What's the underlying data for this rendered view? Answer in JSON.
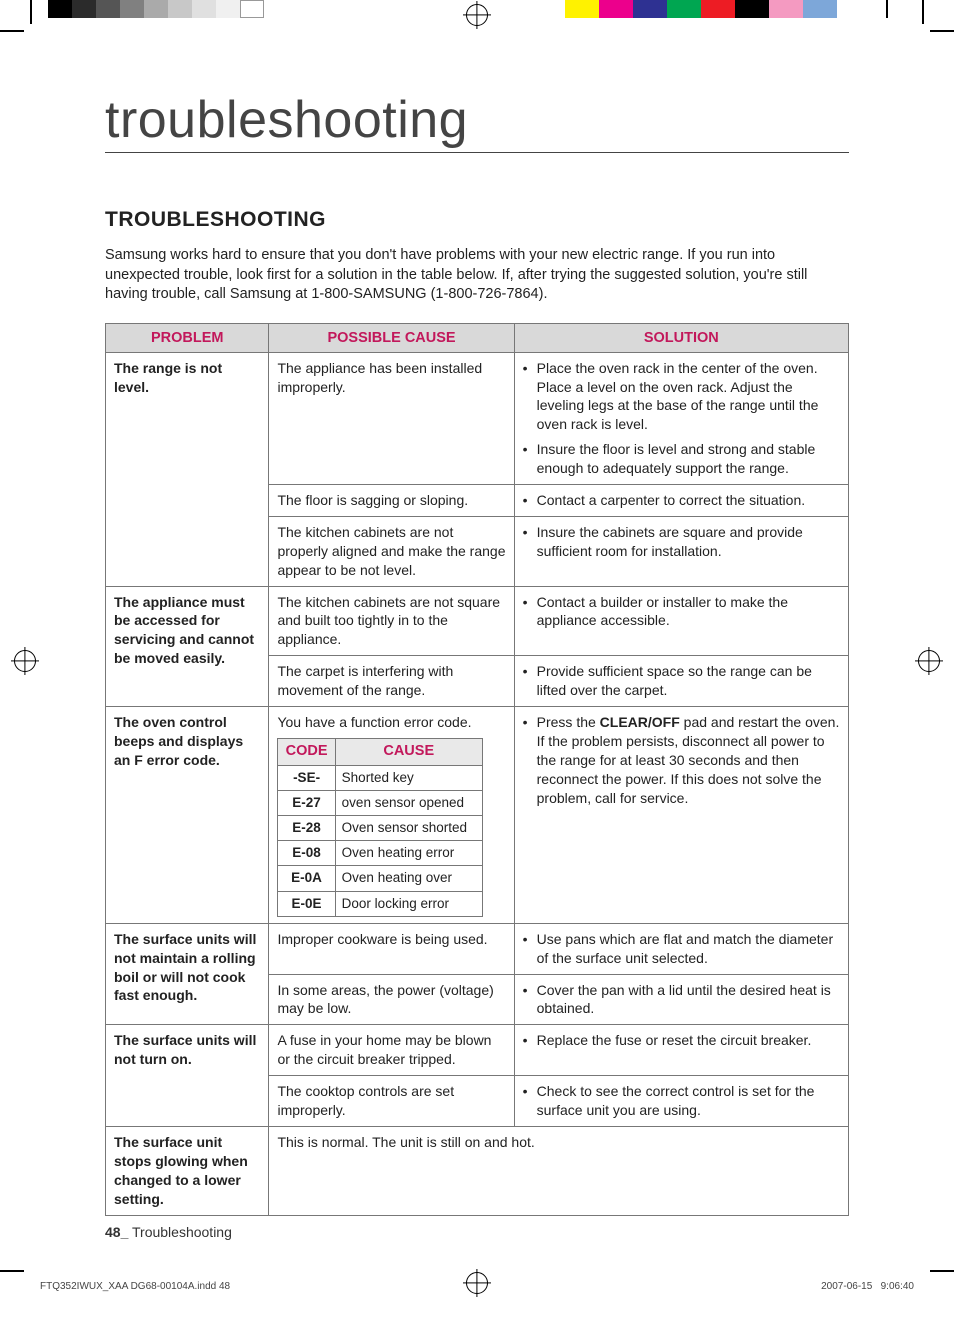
{
  "printer_bars_left": [
    "#000000",
    "#2b2b2b",
    "#555555",
    "#808080",
    "#aaaaaa",
    "#c8c8c8",
    "#e0e0e0",
    "#f0f0f0",
    "#ffffff"
  ],
  "printer_bars_right": [
    "#fff200",
    "#ec008c",
    "#2e3192",
    "#00a651",
    "#ed1c24",
    "#000000",
    "#f49ac1",
    "#7da7d9"
  ],
  "title": "troubleshooting",
  "section_heading": "TROUBLESHOOTING",
  "intro": "Samsung works hard to ensure that you don't have problems with your new electric range. If you run into unexpected trouble, look first for a solution in the table below. If, after trying the suggested solution, you're still having trouble, call Samsung at 1-800-SAMSUNG (1-800-726-7864).",
  "table_headers": {
    "problem": "PROBLEM",
    "cause": "POSSIBLE CAUSE",
    "solution": "SOLUTION"
  },
  "header_text_color": "#c2185b",
  "rows": [
    {
      "problem": "The range is not level.",
      "causes": [
        {
          "text": "The appliance has been installed improperly.",
          "solutions": [
            "Place the oven rack in the center of the oven. Place a level on the oven rack. Adjust the leveling legs at the base of the range until the oven rack is level.",
            "Insure the floor is level and strong and stable enough to adequately support the range."
          ]
        },
        {
          "text": "The floor is sagging or sloping.",
          "solutions": [
            "Contact a carpenter to correct the situation."
          ]
        },
        {
          "text": "The kitchen cabinets are not properly aligned and make the range appear to be not level.",
          "solutions": [
            "Insure the cabinets are square and provide sufficient room for installation."
          ]
        }
      ]
    },
    {
      "problem": "The appliance must be accessed for servicing and cannot be moved easily.",
      "causes": [
        {
          "text": "The kitchen cabinets are not square and built too tightly in to the appliance.",
          "solutions": [
            "Contact a builder or installer to make the appliance accessible."
          ]
        },
        {
          "text": "The carpet is interfering with movement of the range.",
          "solutions": [
            "Provide sufficient space so the range can be lifted over the carpet."
          ]
        }
      ]
    },
    {
      "problem": "The oven control beeps and displays an F error code.",
      "causes": [
        {
          "text": "You have a function error code.",
          "inner_table": {
            "headers": [
              "CODE",
              "CAUSE"
            ],
            "rows": [
              [
                "-SE-",
                "Shorted key"
              ],
              [
                "E-27",
                "oven sensor opened"
              ],
              [
                "E-28",
                "Oven sensor shorted"
              ],
              [
                "E-08",
                "Oven heating error"
              ],
              [
                "E-0A",
                "Oven heating over"
              ],
              [
                "E-0E",
                "Door locking error"
              ]
            ]
          },
          "solutions_html": "Press the <b>CLEAR/OFF</b> pad and restart the oven. If the problem persists, disconnect all power to the range for at least 30 seconds and then reconnect the power. If this does not solve the problem, call for service."
        }
      ]
    },
    {
      "problem": "The surface units will not maintain a rolling boil or will not cook fast enough.",
      "causes": [
        {
          "text": "Improper cookware is being used.",
          "solutions": [
            "Use pans which are flat and match the diameter of the surface unit selected."
          ]
        },
        {
          "text": "In some areas, the power (voltage) may be low.",
          "solutions": [
            "Cover the pan with a lid until the desired heat is obtained."
          ]
        }
      ]
    },
    {
      "problem": "The surface units will not turn on.",
      "causes": [
        {
          "text": "A fuse in your home may be blown or the circuit breaker tripped.",
          "solutions": [
            "Replace the fuse or reset the circuit breaker."
          ]
        },
        {
          "text": "The cooktop controls are set improperly.",
          "solutions": [
            "Check to see the correct control is set for the surface unit you are using."
          ]
        }
      ]
    },
    {
      "problem": "The surface unit stops glowing when changed to a lower setting.",
      "causes": [
        {
          "text": "This is normal. The unit is still on and hot.",
          "solutions": null,
          "span": true
        }
      ]
    }
  ],
  "footer_page": "48_",
  "footer_label": " Troubleshooting",
  "footline_left": "FTQ352IWUX_XAA DG68-00104A.indd   48",
  "footline_right_date": "2007-06-15",
  "footline_right_time": "9:06:40"
}
